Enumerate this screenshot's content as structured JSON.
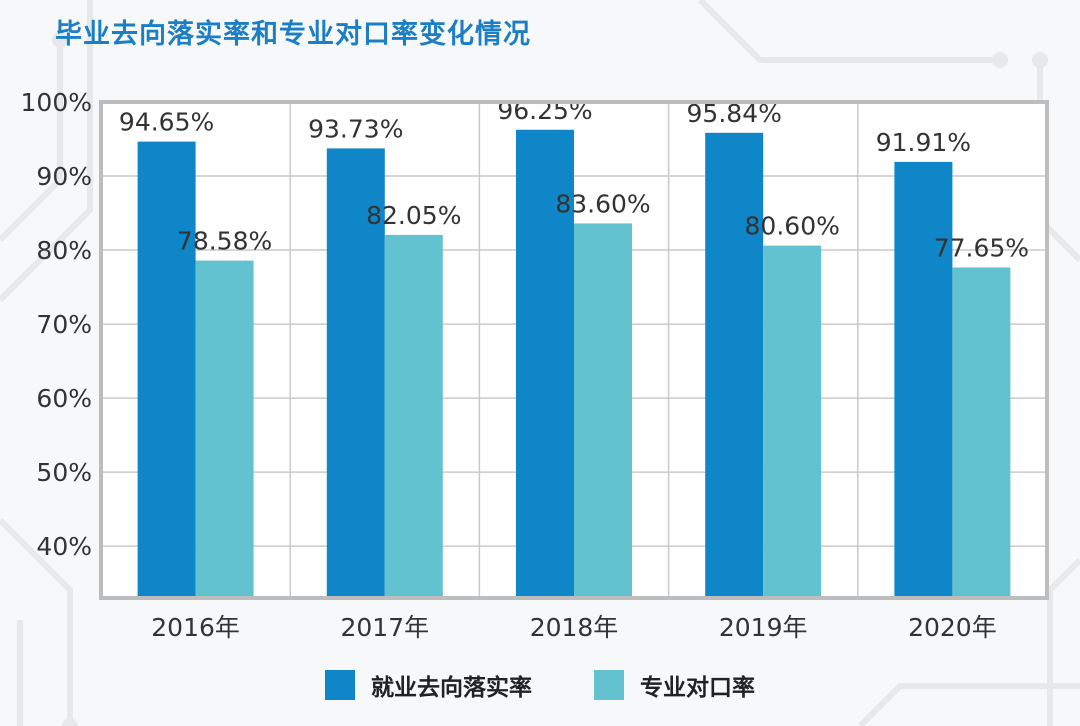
{
  "title": "毕业去向落实率和专业对口率变化情况",
  "colors": {
    "series1": "#0f86c8",
    "series2": "#62c2d0",
    "title": "#1c7fc4"
  },
  "chart_data": {
    "type": "bar",
    "title": "毕业去向落实率和专业对口率变化情况",
    "categories": [
      "2016年",
      "2017年",
      "2018年",
      "2019年",
      "2020年"
    ],
    "series": [
      {
        "name": "就业去向落实率",
        "values": [
          94.65,
          93.73,
          96.25,
          95.84,
          91.91
        ],
        "labels": [
          "94.65%",
          "93.73%",
          "96.25%",
          "95.84%",
          "91.91%"
        ]
      },
      {
        "name": "专业对口率",
        "values": [
          78.58,
          82.05,
          83.6,
          80.6,
          77.65
        ],
        "labels": [
          "78.58%",
          "82.05%",
          "83.60%",
          "80.60%",
          "77.65%"
        ]
      }
    ],
    "ylim": [
      33,
      100
    ],
    "yticks": [
      40,
      50,
      60,
      70,
      80,
      90,
      100
    ],
    "ytick_labels": [
      "40%",
      "50%",
      "60%",
      "70%",
      "80%",
      "90%",
      "100%"
    ],
    "grid": true,
    "legend_position": "bottom"
  }
}
